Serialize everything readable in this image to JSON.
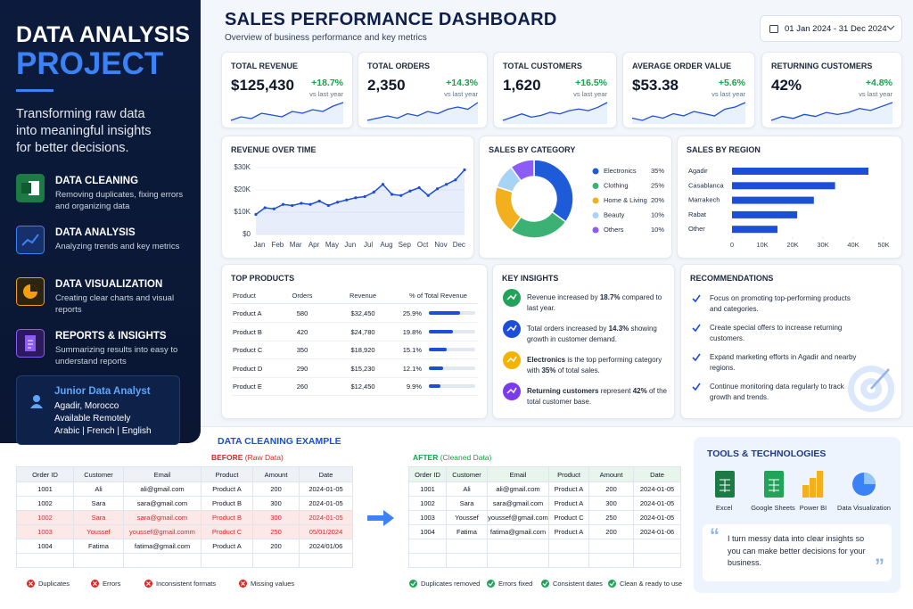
{
  "sidebar": {
    "title": "DATA ANALYSIS",
    "highlight": "PROJECT",
    "tagline": "Transforming raw data into meaningful insights for better decisions.",
    "items": [
      {
        "title": "DATA CLEANING",
        "text": "Removing duplicates, fixing errors and organizing data"
      },
      {
        "title": "DATA ANALYSIS",
        "text": "Analyzing trends and key metrics"
      },
      {
        "title": "DATA VISUALIZATION",
        "text": "Creating clear charts and visual reports"
      },
      {
        "title": "REPORTS & INSIGHTS",
        "text": "Summarizing results into easy to understand reports"
      }
    ],
    "profile": {
      "role": "Junior Data Analyst",
      "lines": [
        "Agadir, Morocco",
        "Available Remotely",
        "Arabic | French | English"
      ]
    }
  },
  "header": {
    "title": "SALES PERFORMANCE DASHBOARD",
    "subtitle": "Overview of business performance and key metrics",
    "date_range": "01 Jan 2024 - 31 Dec 2024"
  },
  "kpis": [
    {
      "label": "TOTAL REVENUE",
      "value": "$125,430",
      "change": "+18.7%",
      "note": "vs last year",
      "trend": [
        4,
        5,
        4.5,
        6,
        5.5,
        5,
        6.5,
        6,
        7,
        6.5,
        8,
        9
      ]
    },
    {
      "label": "TOTAL ORDERS",
      "value": "2,350",
      "change": "+14.3%",
      "note": "vs last year",
      "trend": [
        4,
        4.5,
        5,
        4.5,
        5.5,
        5,
        6,
        5.5,
        6.5,
        7,
        6.5,
        8
      ]
    },
    {
      "label": "TOTAL CUSTOMERS",
      "value": "1,620",
      "change": "+16.5%",
      "note": "vs last year",
      "trend": [
        3,
        4,
        5,
        4,
        4.5,
        5.5,
        5,
        6,
        6.5,
        6,
        7,
        8.5
      ]
    },
    {
      "label": "AVERAGE ORDER VALUE",
      "value": "$53.38",
      "change": "+5.6%",
      "note": "vs last year",
      "trend": [
        5,
        4.5,
        5.5,
        5,
        6,
        5.5,
        6.5,
        6,
        5.5,
        7,
        7.5,
        8.5
      ]
    },
    {
      "label": "RETURNING CUSTOMERS",
      "value": "42%",
      "change": "+4.8%",
      "note": "vs last year",
      "trend": [
        4,
        5,
        4.5,
        5.5,
        5,
        6,
        5.5,
        6,
        7,
        6.5,
        7.5,
        8.5
      ]
    }
  ],
  "chart_data": [
    {
      "type": "line",
      "title": "REVENUE OVER TIME",
      "categories": [
        "Jan",
        null,
        "Feb",
        null,
        "Mar",
        null,
        "Apr",
        null,
        "May",
        null,
        "Jun",
        null,
        "Jul",
        null,
        "Aug",
        null,
        "Sep",
        null,
        "Oct",
        null,
        "Nov",
        null,
        "Dec",
        null
      ],
      "series": [
        {
          "color": "#1d4ed8",
          "values": [
            9000,
            12000,
            11500,
            13500,
            13000,
            14000,
            13500,
            15000,
            13000,
            14500,
            15500,
            16500,
            17000,
            19000,
            22500,
            18000,
            17500,
            19500,
            21000,
            17500,
            20500,
            22500,
            24500,
            29000
          ]
        }
      ],
      "ylim": [
        0,
        30000
      ],
      "yticks": [
        {
          "value": 0,
          "label": "$0"
        },
        {
          "value": 10000,
          "label": "$10K"
        },
        {
          "value": 20000,
          "label": "$20K"
        },
        {
          "value": 30000,
          "label": "$30K"
        }
      ],
      "grid": true
    },
    {
      "type": "pie",
      "title": "SALES BY CATEGORY",
      "donut": true,
      "categories": [
        "Electronics",
        "Clothing",
        "Home & Living",
        "Beauty",
        "Others"
      ],
      "values": [
        35,
        25,
        20,
        10,
        10
      ],
      "value_labels": [
        "35%",
        "25%",
        "20%",
        "10%",
        "10%"
      ],
      "colors": [
        "#1d5bd8",
        "#3bb273",
        "#f2b01e",
        "#a7d3f5",
        "#8b5cf6"
      ]
    },
    {
      "type": "bar",
      "orientation": "horizontal",
      "title": "SALES BY REGION",
      "categories": [
        "Agadir",
        "Casablanca",
        "Marrakech",
        "Rabat",
        "Other"
      ],
      "values": [
        45000,
        34000,
        27000,
        21500,
        15000
      ],
      "color": "#1d4ed8",
      "xlim": [
        0,
        50000
      ],
      "xticks": [
        0,
        {
          "value": 10000,
          "label": "10K"
        },
        {
          "value": 20000,
          "label": "20K"
        },
        {
          "value": 30000,
          "label": "30K"
        },
        {
          "value": 40000,
          "label": "40K"
        },
        {
          "value": 50000,
          "label": "50K"
        }
      ]
    }
  ],
  "top_products": {
    "title": "TOP PRODUCTS",
    "columns": [
      "Product",
      "Orders",
      "Revenue",
      "% of Total Revenue"
    ],
    "rows": [
      {
        "product": "Product A",
        "orders": 580,
        "revenue": "$32,450",
        "share": 25.9,
        "share_label": "25.9%"
      },
      {
        "product": "Product B",
        "orders": 420,
        "revenue": "$24,780",
        "share": 19.8,
        "share_label": "19.8%"
      },
      {
        "product": "Product C",
        "orders": 350,
        "revenue": "$18,920",
        "share": 15.1,
        "share_label": "15.1%"
      },
      {
        "product": "Product D",
        "orders": 290,
        "revenue": "$15,230",
        "share": 12.1,
        "share_label": "12.1%"
      },
      {
        "product": "Product E",
        "orders": 260,
        "revenue": "$12,450",
        "share": 9.9,
        "share_label": "9.9%"
      }
    ]
  },
  "insights": {
    "title": "KEY INSIGHTS",
    "items": [
      {
        "color": "#22a35a",
        "parts": [
          {
            "text": "Revenue increased by "
          },
          {
            "text": "18.7%",
            "bold": true
          },
          {
            "text": " compared to last year."
          }
        ]
      },
      {
        "color": "#1d4ed8",
        "parts": [
          {
            "text": "Total orders increased by "
          },
          {
            "text": "14.3%",
            "bold": true
          },
          {
            "text": " showing growth in customer demand."
          }
        ]
      },
      {
        "color": "#f5b301",
        "parts": [
          {
            "text": "Electronics",
            "bold": true
          },
          {
            "text": " is the top performing category with "
          },
          {
            "text": "35%",
            "bold": true
          },
          {
            "text": " of total sales."
          }
        ]
      },
      {
        "color": "#7c3aed",
        "parts": [
          {
            "text": "Returning customers",
            "bold": true
          },
          {
            "text": " represent "
          },
          {
            "text": "42%",
            "bold": true
          },
          {
            "text": " of the total customer base."
          }
        ]
      }
    ]
  },
  "recommendations": {
    "title": "RECOMMENDATIONS",
    "items": [
      "Focus on promoting top-performing products and categories.",
      "Create special offers to increase returning customers.",
      "Expand marketing efforts in Agadir and nearby regions.",
      "Continue monitoring data regularly to track growth and trends."
    ]
  },
  "cleaning": {
    "title": "DATA CLEANING EXAMPLE",
    "before": {
      "label": "BEFORE",
      "note": "(Raw Data)",
      "highlight_rows": [
        2,
        3
      ],
      "columns": [
        "Order ID",
        "Customer",
        "Email",
        "Product",
        "Amount",
        "Date"
      ],
      "rows": [
        [
          "1001",
          "Ali",
          "ali@gmail.com",
          "Product A",
          "200",
          "2024-01-05"
        ],
        [
          "1002",
          "Sara",
          "sara@gmail.com",
          "Product B",
          "300",
          "2024-01-05"
        ],
        [
          "1002",
          "Sara",
          "sara@gmail.com",
          "Product B",
          "300",
          "2024-01-05"
        ],
        [
          "1003",
          "Youssef",
          "youssef@gmail.comm",
          "Product C",
          "250",
          "05/01/2024"
        ],
        [
          "1004",
          "Fatima",
          "fatima@gmail.com",
          "Product A",
          "200",
          "2024/01/06"
        ]
      ],
      "legend": [
        "Duplicates",
        "Errors",
        "Inconsistent formats",
        "Missing values"
      ]
    },
    "after": {
      "label": "AFTER",
      "note": "(Cleaned Data)",
      "columns": [
        "Order ID",
        "Customer",
        "Email",
        "Product",
        "Amount",
        "Date"
      ],
      "rows": [
        [
          "1001",
          "Ali",
          "ali@gmail.com",
          "Product A",
          "200",
          "2024-01-05"
        ],
        [
          "1002",
          "Sara",
          "sara@gmail.com",
          "Product A",
          "300",
          "2024-01-05"
        ],
        [
          "1003",
          "Youssef",
          "youssef@gmail.com",
          "Product C",
          "250",
          "2024-01-05"
        ],
        [
          "1004",
          "Fatima",
          "fatima@gmail.com",
          "Product A",
          "200",
          "2024-01-06"
        ]
      ],
      "legend": [
        "Duplicates removed",
        "Errors fixed",
        "Consistent dates",
        "Clean & ready to use"
      ]
    }
  },
  "tools": {
    "title": "TOOLS & TECHNOLOGIES",
    "items": [
      "Excel",
      "Google Sheets",
      "Power BI",
      "Data Visualization"
    ],
    "quote": "I turn messy data into clear insights so you can make better decisions for your business."
  }
}
